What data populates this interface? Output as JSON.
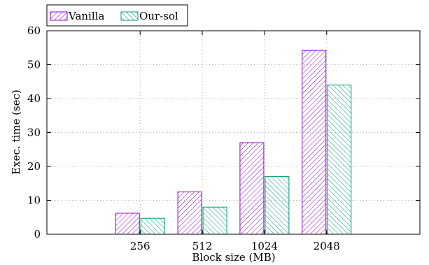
{
  "chart_data": {
    "type": "bar",
    "title": "",
    "xlabel": "Block size (MB)",
    "ylabel": "Exec. time (sec)",
    "categories": [
      "256",
      "512",
      "1024",
      "2048"
    ],
    "series": [
      {
        "name": "Vanilla",
        "values": [
          6.2,
          12.5,
          27.0,
          54.2
        ],
        "color": "#9400d3"
      },
      {
        "name": "Our-sol",
        "values": [
          4.7,
          8.0,
          17.0,
          44.0
        ],
        "color": "#009e73"
      }
    ],
    "ylim": [
      0,
      60
    ],
    "yticks": [
      "0",
      "10",
      "20",
      "30",
      "40",
      "50",
      "60"
    ],
    "grid": true,
    "legend_position": "top-left"
  }
}
